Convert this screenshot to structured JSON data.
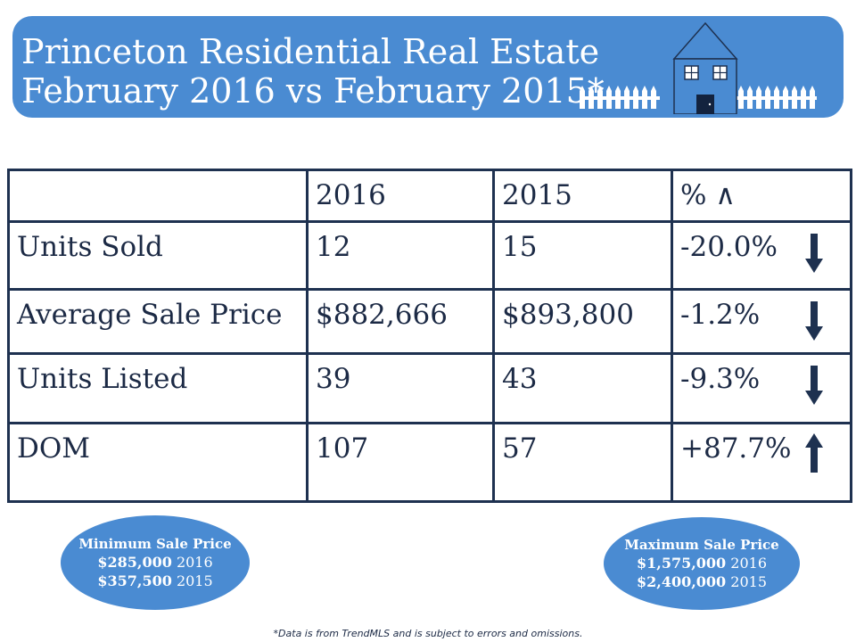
{
  "header": {
    "title_line1": "Princeton Residential Real Estate",
    "title_line2": "February 2016 vs February 2015*"
  },
  "colors": {
    "banner": "#4a8bd2",
    "border": "#1e3150",
    "text": "#1c2a45",
    "arrow": "#1e3150"
  },
  "table": {
    "columns": [
      "",
      "2016",
      "2015",
      "% ∧"
    ],
    "rows": [
      {
        "label": "Units Sold",
        "v2016": "12",
        "v2015": "15",
        "pct": "-20.0%",
        "trend": "down"
      },
      {
        "label": "Average Sale Price",
        "v2016": "$882,666",
        "v2015": "$893,800",
        "pct": "-1.2%",
        "trend": "down"
      },
      {
        "label": "Units Listed",
        "v2016": "39",
        "v2015": "43",
        "pct": "-9.3%",
        "trend": "down"
      },
      {
        "label": "DOM",
        "v2016": "107",
        "v2015": "57",
        "pct": "+87.7%",
        "trend": "up"
      }
    ]
  },
  "min_price": {
    "title": "Minimum Sale Price",
    "line1_value": "$285,000",
    "line1_year": "2016",
    "line2_value": "$357,500",
    "line2_year": "2015"
  },
  "max_price": {
    "title": "Maximum Sale Price",
    "line1_value": "$1,575,000",
    "line1_year": "2016",
    "line2_value": "$2,400,000",
    "line2_year": "2015"
  },
  "icons": {
    "house": "house-icon",
    "fence": "picket-fence-icon",
    "down": "arrow-down-icon",
    "up": "arrow-up-icon"
  },
  "footnote": "*Data is from TrendMLS and is subject to errors and omissions."
}
